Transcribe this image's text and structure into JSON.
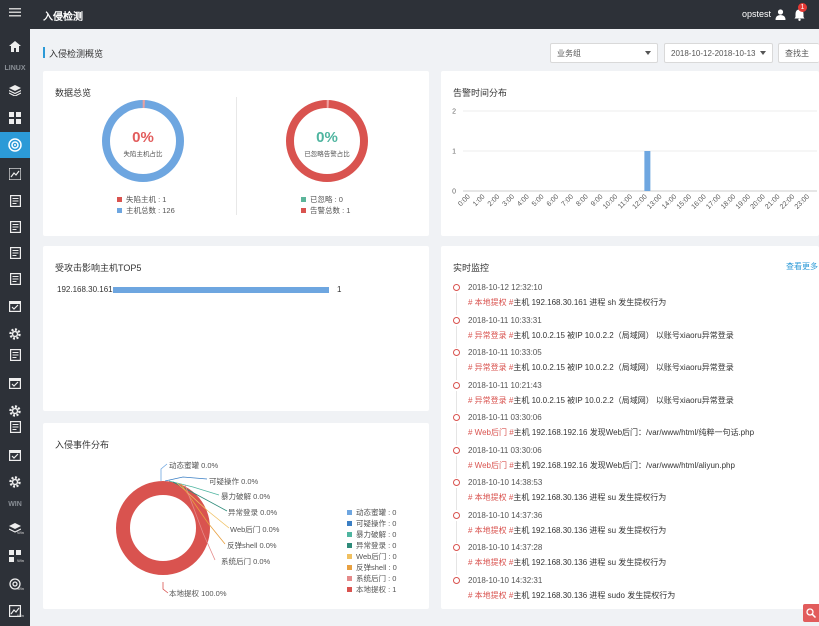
{
  "header": {
    "title": "入侵检测",
    "username": "opstest",
    "notification_count": "1"
  },
  "sidebar": {
    "section_linux": "LINUX",
    "section_win": "WIN",
    "win_sub": "Win",
    "items": [
      "menu-icon",
      "home-icon",
      "layers-icon",
      "grid-icon",
      "intrusion-icon",
      "dashboard-icon",
      "doc-icon",
      "doc-icon",
      "doc-icon",
      "doc-icon",
      "calendar-icon",
      "gear-icon",
      "doc-icon",
      "calendar-icon",
      "gear-icon",
      "doc-icon",
      "calendar-icon",
      "gear-icon"
    ]
  },
  "page": {
    "title": "入侵检测概览",
    "filter_group": "业务组",
    "date_range": "2018-10-12-2018-10-13",
    "search_btn": "查找主"
  },
  "overview": {
    "title": "数据总览",
    "host": {
      "percent": "0%",
      "label": "失陷主机占比",
      "legend": [
        {
          "text": "失陷主机 : 1",
          "color": "#d9534f"
        },
        {
          "text": "主机总数 : 126",
          "color": "#6ea6e0"
        }
      ]
    },
    "alarm": {
      "percent": "0%",
      "label": "已忽略告警占比",
      "legend": [
        {
          "text": "已忽略 : 0",
          "color": "#5cb59a"
        },
        {
          "text": "告警总数 : 1",
          "color": "#d9534f"
        }
      ]
    }
  },
  "alarm_time": {
    "title": "告警时间分布",
    "chart_data": {
      "type": "bar",
      "categories": [
        "0:00",
        "1:00",
        "2:00",
        "3:00",
        "4:00",
        "5:00",
        "6:00",
        "7:00",
        "8:00",
        "9:00",
        "10:00",
        "11:00",
        "12:00",
        "13:00",
        "14:00",
        "15:00",
        "16:00",
        "17:00",
        "18:00",
        "19:00",
        "20:00",
        "21:00",
        "22:00",
        "23:00"
      ],
      "values": [
        0,
        0,
        0,
        0,
        0,
        0,
        0,
        0,
        0,
        0,
        0,
        0,
        1,
        0,
        0,
        0,
        0,
        0,
        0,
        0,
        0,
        0,
        0,
        0
      ],
      "yticks": [
        "0",
        "1",
        "2"
      ],
      "ylim": [
        0,
        2
      ],
      "color": "#6ea6e0"
    }
  },
  "top5": {
    "title": "受攻击影响主机TOP5",
    "chart_data": {
      "type": "bar",
      "categories": [
        "192.168.30.161"
      ],
      "values": [
        1
      ],
      "color": "#6ea6e0"
    }
  },
  "events": {
    "title": "入侵事件分布",
    "chart_data": {
      "type": "pie",
      "slices": [
        {
          "name": "动态蜜罐",
          "label": "动态蜜罐 0.0%",
          "legend": "动态蜜罐 : 0",
          "value": 0,
          "color": "#6ea6e0"
        },
        {
          "name": "可疑操作",
          "label": "可疑操作 0.0%",
          "legend": "可疑操作 : 0",
          "value": 0,
          "color": "#3b7fc4"
        },
        {
          "name": "暴力破解",
          "label": "暴力破解 0.0%",
          "legend": "暴力破解 : 0",
          "value": 0,
          "color": "#4fb5a0"
        },
        {
          "name": "异常登录",
          "label": "异常登录 0.0%",
          "legend": "异常登录 : 0",
          "value": 0,
          "color": "#2e8b7a"
        },
        {
          "name": "Web后门",
          "label": "Web后门 0.0%",
          "legend": "Web后门 : 0",
          "value": 0,
          "color": "#f0c060"
        },
        {
          "name": "反弹shell",
          "label": "反弹shell 0.0%",
          "legend": "反弹shell : 0",
          "value": 0,
          "color": "#e8a040"
        },
        {
          "name": "系统后门",
          "label": "系统后门 0.0%",
          "legend": "系统后门 : 0",
          "value": 0,
          "color": "#e58a8a"
        },
        {
          "name": "本地提权",
          "label": "本地提权 100.0%",
          "legend": "本地提权 : 1",
          "value": 1,
          "color": "#d9534f"
        }
      ]
    }
  },
  "monitor": {
    "title": "实时监控",
    "more": "查看更多",
    "items": [
      {
        "time": "2018-10-12 12:32:10",
        "tag": "# 本地提权 #",
        "text": "主机 192.168.30.161 进程 sh 发生提权行为"
      },
      {
        "time": "2018-10-11 10:33:31",
        "tag": "# 异常登录 #",
        "text": "主机 10.0.2.15 被IP 10.0.2.2（局域网） 以账号xiaoru异常登录"
      },
      {
        "time": "2018-10-11 10:33:05",
        "tag": "# 异常登录 #",
        "text": "主机 10.0.2.15 被IP 10.0.2.2（局域网） 以账号xiaoru异常登录"
      },
      {
        "time": "2018-10-11 10:21:43",
        "tag": "# 异常登录 #",
        "text": "主机 10.0.2.15 被IP 10.0.2.2（局域网） 以账号xiaoru异常登录"
      },
      {
        "time": "2018-10-11 03:30:06",
        "tag": "# Web后门 #",
        "text": "主机 192.168.192.16 发现Web后门：/var/www/html/纯粹一句话.php"
      },
      {
        "time": "2018-10-11 03:30:06",
        "tag": "# Web后门 #",
        "text": "主机 192.168.192.16 发现Web后门：/var/www/html/aliyun.php"
      },
      {
        "time": "2018-10-10 14:38:53",
        "tag": "# 本地提权 #",
        "text": "主机 192.168.30.136 进程 su 发生提权行为"
      },
      {
        "time": "2018-10-10 14:37:36",
        "tag": "# 本地提权 #",
        "text": "主机 192.168.30.136 进程 su 发生提权行为"
      },
      {
        "time": "2018-10-10 14:37:28",
        "tag": "# 本地提权 #",
        "text": "主机 192.168.30.136 进程 su 发生提权行为"
      },
      {
        "time": "2018-10-10 14:32:31",
        "tag": "# 本地提权 #",
        "text": "主机 192.168.30.136 进程 sudo 发生提权行为"
      }
    ]
  }
}
